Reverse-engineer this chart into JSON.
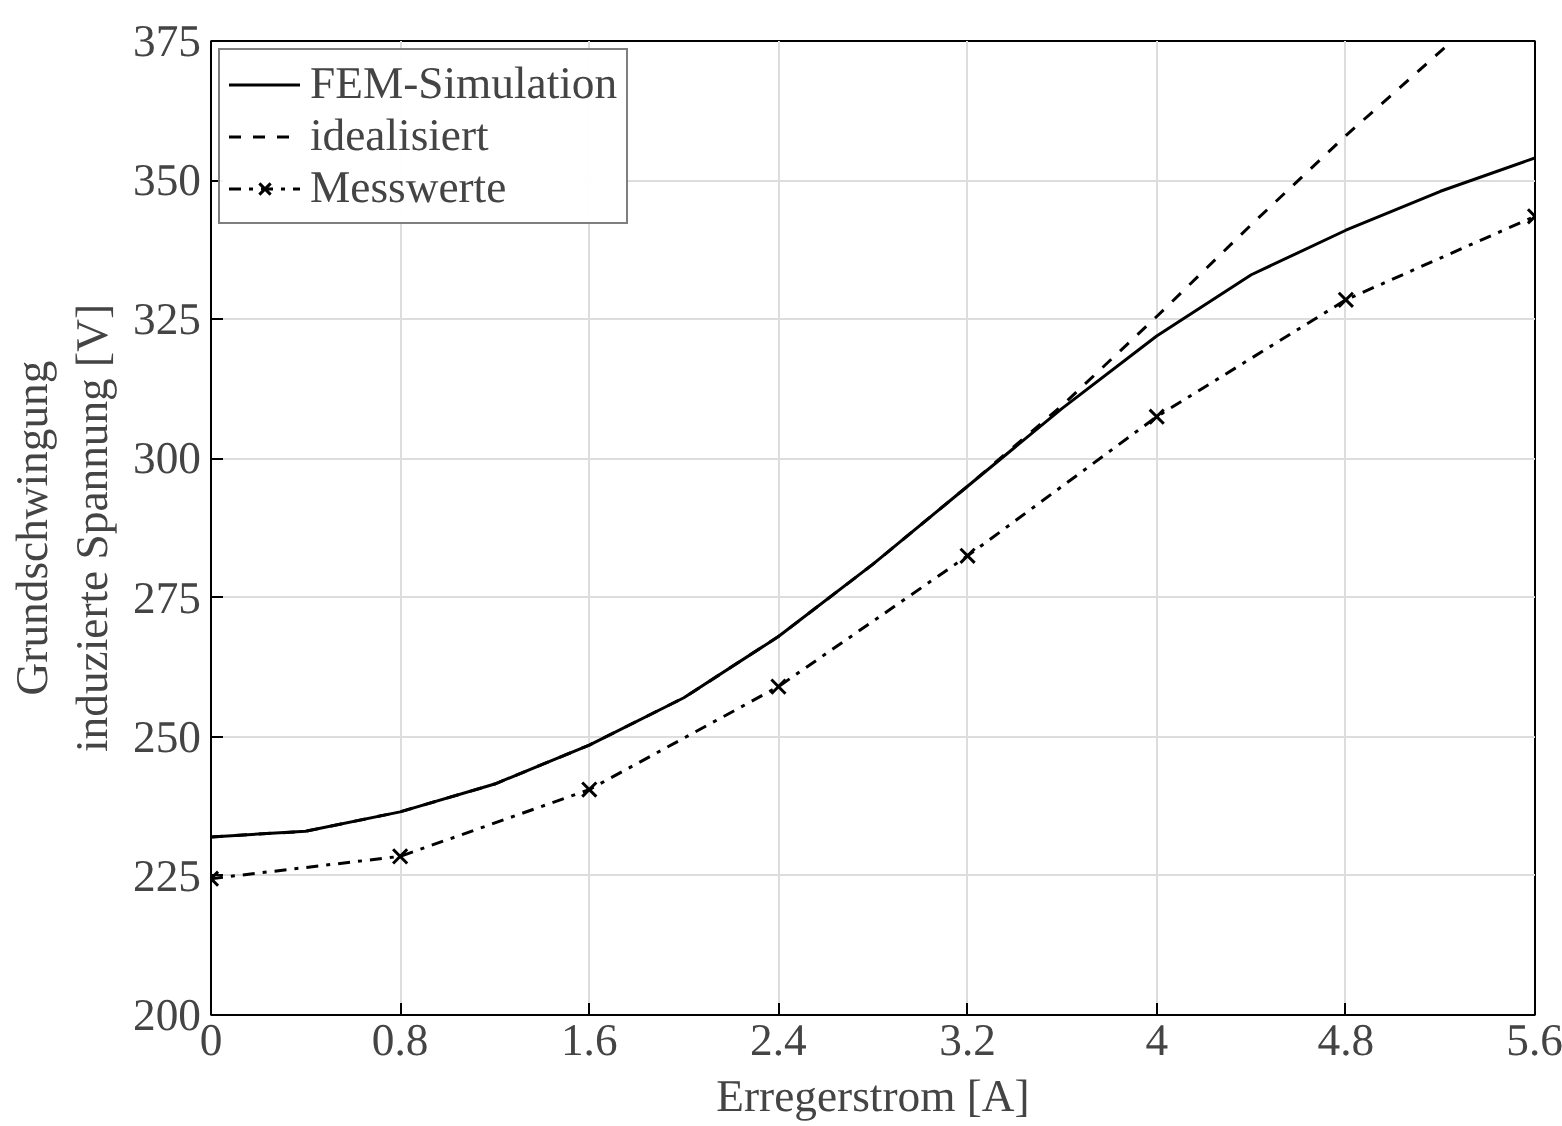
{
  "chart_data": {
    "type": "line",
    "xlabel": "Erregerstrom [A]",
    "ylabel": "Grundschwingung\ninduzierte Spannung [V]",
    "xlim": [
      0,
      5.6
    ],
    "ylim": [
      200,
      375
    ],
    "xticks": [
      0,
      0.8,
      1.6,
      2.4,
      3.2,
      4,
      4.8,
      5.6
    ],
    "yticks": [
      200,
      225,
      250,
      275,
      300,
      325,
      350,
      375
    ],
    "grid": true,
    "legend": "top left",
    "series": [
      {
        "name": "FEM-Simulation",
        "color": "#000000",
        "line_style": "solid",
        "marker": "none",
        "x": [
          0,
          0.4,
          0.8,
          1.2,
          1.6,
          2.0,
          2.4,
          2.8,
          3.2,
          3.6,
          4.0,
          4.4,
          4.8,
          5.2,
          5.6
        ],
        "values": [
          232,
          233,
          236.5,
          241.5,
          248.5,
          257,
          268,
          281,
          295,
          309,
          322,
          333,
          341,
          348,
          354
        ]
      },
      {
        "name": "idealisiert",
        "color": "#000000",
        "line_style": "dashed",
        "marker": "none",
        "x": [
          0,
          0.4,
          0.8,
          1.2,
          1.6,
          2.0,
          2.4,
          2.8,
          3.2,
          3.6,
          4.0,
          4.4,
          4.8,
          5.25
        ],
        "values": [
          232,
          233,
          236.5,
          241.5,
          248.5,
          257,
          268,
          281,
          295,
          309.5,
          325.5,
          342,
          358,
          375
        ]
      },
      {
        "name": "Messwerte",
        "color": "#000000",
        "line_style": "dashdot",
        "marker": "cross",
        "x": [
          0,
          0.8,
          1.6,
          2.4,
          3.2,
          4.0,
          4.8,
          5.6
        ],
        "values": [
          224.5,
          228.5,
          240.5,
          259,
          282.5,
          307.5,
          328.5,
          343.5
        ]
      }
    ]
  }
}
